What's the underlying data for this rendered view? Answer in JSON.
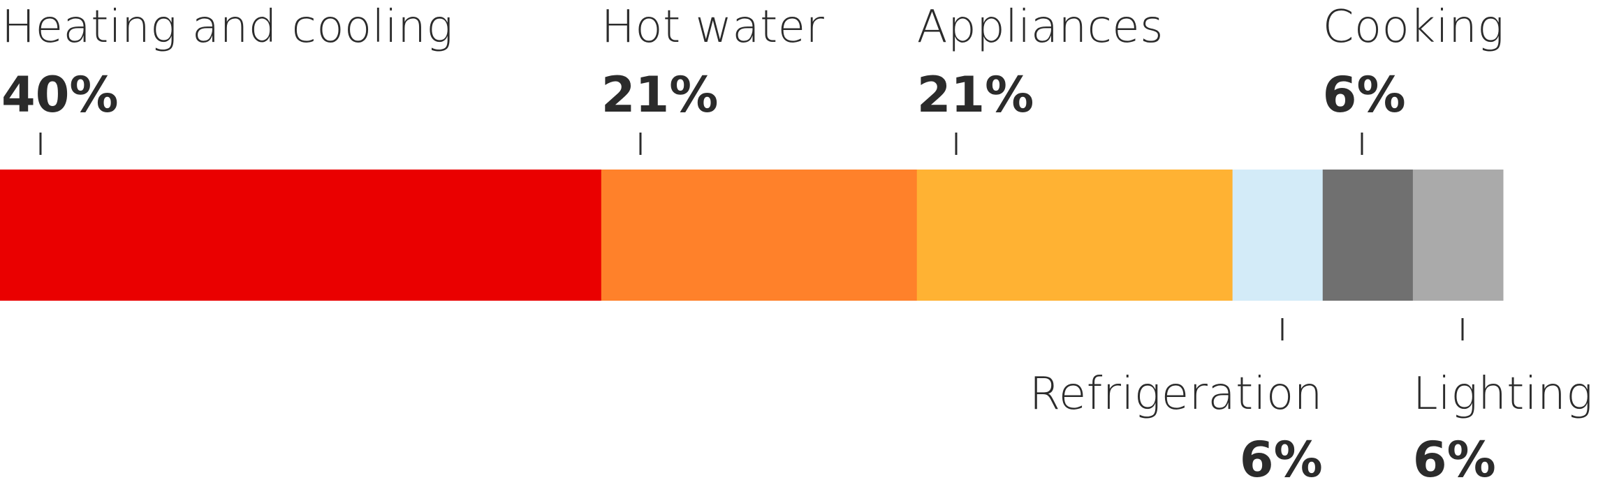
{
  "chart_data": {
    "type": "bar",
    "orientation": "horizontal-stacked",
    "title": "",
    "xlabel": "",
    "ylabel": "",
    "grid": false,
    "legend": "none",
    "segments": [
      {
        "name": "Heating and cooling",
        "value": 40,
        "label": "40%",
        "color": "#ea0000",
        "label_position": "above"
      },
      {
        "name": "Hot water",
        "value": 21,
        "label": "21%",
        "color": "#ff812a",
        "label_position": "above"
      },
      {
        "name": "Appliances",
        "value": 21,
        "label": "21%",
        "color": "#ffb233",
        "label_position": "above"
      },
      {
        "name": "Refrigeration",
        "value": 6,
        "label": "6%",
        "color": "#d3ebf8",
        "label_position": "below"
      },
      {
        "name": "Cooking",
        "value": 6,
        "label": "6%",
        "color": "#707070",
        "label_position": "above"
      },
      {
        "name": "Lighting",
        "value": 6,
        "label": "6%",
        "color": "#aaaaaa",
        "label_position": "below"
      }
    ]
  }
}
